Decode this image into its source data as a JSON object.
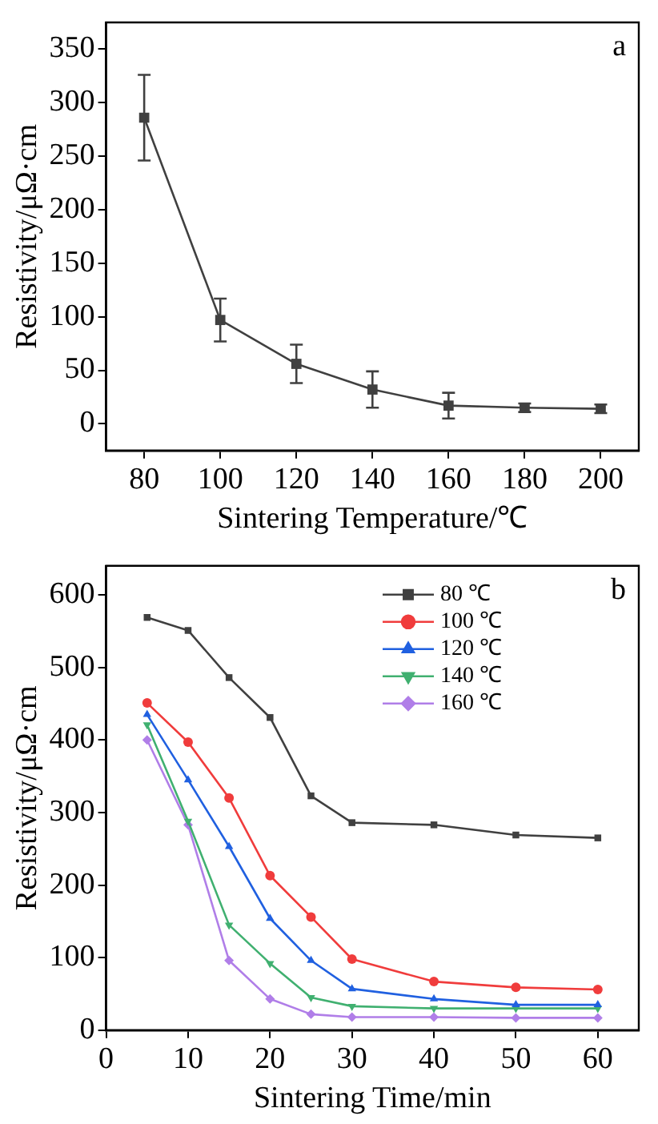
{
  "chart_data": [
    {
      "type": "line",
      "xlabel": "Sintering Temperature/℃",
      "ylabel": "Resistivity/μΩ·cm",
      "annotations": [
        "a"
      ],
      "x": [
        80,
        100,
        120,
        140,
        160,
        180,
        200
      ],
      "series": [
        {
          "color": "#404040",
          "marker": "square",
          "values": [
            286,
            97,
            56,
            32,
            17,
            15,
            14
          ],
          "errors": [
            40,
            20,
            18,
            17,
            12,
            4,
            4
          ]
        }
      ],
      "xlim": [
        70,
        210
      ],
      "xticks": [
        80,
        100,
        120,
        140,
        160,
        180,
        200
      ],
      "ylim": [
        -25,
        375
      ],
      "yticks": [
        0,
        50,
        100,
        150,
        200,
        250,
        300,
        350
      ],
      "grid": false,
      "legend": false
    },
    {
      "type": "line",
      "xlabel": "Sintering Time/min",
      "ylabel": "Resistivity/μΩ·cm",
      "annotations": [
        "b"
      ],
      "x": [
        5,
        10,
        15,
        20,
        25,
        30,
        40,
        50,
        60
      ],
      "series": [
        {
          "name": "80 ℃",
          "color": "#404040",
          "marker": "square",
          "values": [
            569,
            551,
            486,
            431,
            323,
            286,
            283,
            269,
            265
          ]
        },
        {
          "name": "100 ℃",
          "color": "#f03c3c",
          "marker": "circle",
          "values": [
            451,
            397,
            320,
            213,
            156,
            98,
            67,
            59,
            56
          ]
        },
        {
          "name": "120 ℃",
          "color": "#2060e0",
          "marker": "triangle",
          "values": [
            435,
            345,
            253,
            154,
            96,
            57,
            43,
            35,
            35
          ]
        },
        {
          "name": "140 ℃",
          "color": "#40b070",
          "marker": "triangle_down",
          "values": [
            421,
            288,
            145,
            92,
            45,
            33,
            30,
            30,
            30
          ]
        },
        {
          "name": "160 ℃",
          "color": "#b07ee8",
          "marker": "diamond",
          "values": [
            400,
            283,
            96,
            43,
            22,
            18,
            18,
            17,
            17
          ]
        }
      ],
      "xlim": [
        0,
        65
      ],
      "xticks": [
        0,
        10,
        20,
        30,
        40,
        50,
        60
      ],
      "ylim": [
        0,
        640
      ],
      "yticks": [
        0,
        100,
        200,
        300,
        400,
        500,
        600
      ],
      "grid": false,
      "legend": "top right"
    }
  ]
}
